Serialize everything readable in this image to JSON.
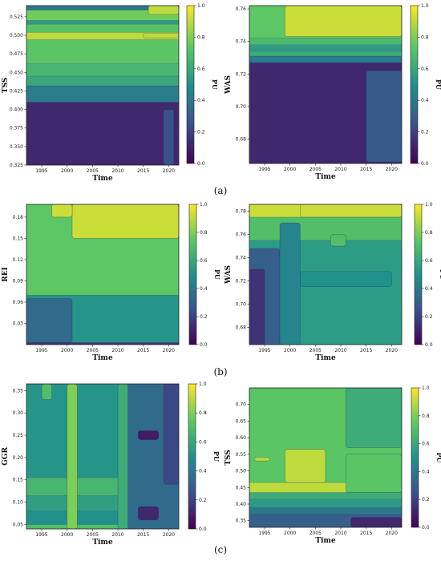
{
  "panel_labels": [
    "(a)",
    "(b)",
    "(c)"
  ],
  "colorbar": {
    "label": "PU",
    "ticks": [
      "0.0",
      "0.2",
      "0.4",
      "0.6",
      "0.8",
      "1.0"
    ],
    "stops": [
      "#440154",
      "#3b528b",
      "#21918c",
      "#5ec962",
      "#fde725"
    ]
  },
  "chart_data": [
    {
      "type": "heatmap",
      "xlabel": "Time",
      "ylabel": "TSS",
      "xticks": [
        "1995",
        "2000",
        "2005",
        "2010",
        "2015",
        "2020"
      ],
      "yticks": [
        "0.325",
        "0.350",
        "0.375",
        "0.400",
        "0.425",
        "0.450",
        "0.475",
        "0.500",
        "0.525"
      ],
      "xlim": [
        1992,
        2022
      ],
      "ylim": [
        0.325,
        0.54
      ],
      "vlim": [
        0,
        1
      ],
      "bands": [
        {
          "y0": 0.325,
          "y1": 0.41,
          "value": 0.12
        },
        {
          "y0": 0.41,
          "y1": 0.432,
          "value": 0.42
        },
        {
          "y0": 0.432,
          "y1": 0.445,
          "value": 0.6
        },
        {
          "y0": 0.445,
          "y1": 0.462,
          "value": 0.66
        },
        {
          "y0": 0.462,
          "y1": 0.494,
          "value": 0.73
        },
        {
          "y0": 0.494,
          "y1": 0.504,
          "value": 0.9
        },
        {
          "y0": 0.504,
          "y1": 0.515,
          "value": 0.72
        },
        {
          "y0": 0.515,
          "y1": 0.52,
          "value": 0.55
        },
        {
          "y0": 0.52,
          "y1": 0.534,
          "value": 0.78
        },
        {
          "y0": 0.534,
          "y1": 0.54,
          "value": 0.4
        }
      ],
      "patches": [
        {
          "x0": 2016,
          "x1": 2022,
          "y0": 0.528,
          "y1": 0.54,
          "value": 0.9
        },
        {
          "x0": 2015,
          "x1": 2022,
          "y0": 0.496,
          "y1": 0.503,
          "value": 0.9
        },
        {
          "x0": 2019,
          "x1": 2021,
          "y0": 0.325,
          "y1": 0.4,
          "value": 0.25
        }
      ]
    },
    {
      "type": "heatmap",
      "xlabel": "Time",
      "ylabel": "WAS",
      "xticks": [
        "1995",
        "2000",
        "2005",
        "2010",
        "2015",
        "2020"
      ],
      "yticks": [
        "0.68",
        "0.70",
        "0.72",
        "0.74",
        "0.76"
      ],
      "xlim": [
        1992,
        2022
      ],
      "ylim": [
        0.665,
        0.762
      ],
      "vlim": [
        0,
        1
      ],
      "bands": [
        {
          "y0": 0.665,
          "y1": 0.727,
          "value": 0.12
        },
        {
          "y0": 0.727,
          "y1": 0.731,
          "value": 0.42
        },
        {
          "y0": 0.731,
          "y1": 0.734,
          "value": 0.62
        },
        {
          "y0": 0.734,
          "y1": 0.738,
          "value": 0.55
        },
        {
          "y0": 0.738,
          "y1": 0.742,
          "value": 0.68
        },
        {
          "y0": 0.742,
          "y1": 0.762,
          "value": 0.74
        }
      ],
      "patches": [
        {
          "x0": 1999,
          "x1": 2022,
          "y0": 0.743,
          "y1": 0.762,
          "value": 0.92
        },
        {
          "x0": 2015,
          "x1": 2022,
          "y0": 0.666,
          "y1": 0.722,
          "value": 0.28
        }
      ]
    },
    {
      "type": "heatmap",
      "xlabel": "Time",
      "ylabel": "REI",
      "xticks": [
        "1995",
        "2000",
        "2005",
        "2010",
        "2015",
        "2020"
      ],
      "yticks": [
        "0.03",
        "0.06",
        "0.09",
        "0.12",
        "0.15",
        "0.18"
      ],
      "xlim": [
        1992,
        2022
      ],
      "ylim": [
        0.0,
        0.198
      ],
      "vlim": [
        0,
        1
      ],
      "bands": [
        {
          "y0": 0.0,
          "y1": 0.003,
          "value": 0.15
        },
        {
          "y0": 0.003,
          "y1": 0.07,
          "value": 0.52
        },
        {
          "y0": 0.07,
          "y1": 0.198,
          "value": 0.74
        }
      ],
      "patches": [
        {
          "x0": 1992,
          "x1": 2001,
          "y0": 0.003,
          "y1": 0.065,
          "value": 0.35
        },
        {
          "x0": 2001,
          "x1": 2022,
          "y0": 0.15,
          "y1": 0.198,
          "value": 0.92
        },
        {
          "x0": 1997,
          "x1": 2001,
          "y0": 0.18,
          "y1": 0.198,
          "value": 0.92
        }
      ]
    },
    {
      "type": "heatmap",
      "xlabel": "Time",
      "ylabel": "WAS",
      "xticks": [
        "1995",
        "2000",
        "2005",
        "2010",
        "2015",
        "2020"
      ],
      "yticks": [
        "0.68",
        "0.70",
        "0.72",
        "0.74",
        "0.76",
        "0.78"
      ],
      "xlim": [
        1992,
        2022
      ],
      "ylim": [
        0.665,
        0.786
      ],
      "vlim": [
        0,
        1
      ],
      "bands": [
        {
          "y0": 0.665,
          "y1": 0.755,
          "value": 0.55
        },
        {
          "y0": 0.755,
          "y1": 0.775,
          "value": 0.7
        },
        {
          "y0": 0.775,
          "y1": 0.786,
          "value": 0.92
        }
      ],
      "patches": [
        {
          "x0": 1992,
          "x1": 1998,
          "y0": 0.665,
          "y1": 0.748,
          "value": 0.3
        },
        {
          "x0": 1992,
          "x1": 1995,
          "y0": 0.665,
          "y1": 0.73,
          "value": 0.15
        },
        {
          "x0": 1998,
          "x1": 2002,
          "y0": 0.665,
          "y1": 0.77,
          "value": 0.45
        },
        {
          "x0": 2002,
          "x1": 2022,
          "y0": 0.775,
          "y1": 0.786,
          "value": 0.92
        },
        {
          "x0": 2008,
          "x1": 2011,
          "y0": 0.75,
          "y1": 0.76,
          "value": 0.7
        },
        {
          "x0": 2002,
          "x1": 2020,
          "y0": 0.715,
          "y1": 0.728,
          "value": 0.5
        }
      ]
    },
    {
      "type": "heatmap",
      "xlabel": "Time",
      "ylabel": "GGR",
      "xticks": [
        "1995",
        "2000",
        "2005",
        "2010",
        "2015",
        "2020"
      ],
      "yticks": [
        "0.05",
        "0.10",
        "0.15",
        "0.20",
        "0.25",
        "0.30",
        "0.35"
      ],
      "xlim": [
        1992,
        2022
      ],
      "ylim": [
        0.04,
        0.365
      ],
      "vlim": [
        0,
        1
      ],
      "bands": [
        {
          "y0": 0.04,
          "y1": 0.05,
          "value": 0.7
        },
        {
          "y0": 0.05,
          "y1": 0.08,
          "value": 0.5
        },
        {
          "y0": 0.08,
          "y1": 0.115,
          "value": 0.56
        },
        {
          "y0": 0.115,
          "y1": 0.155,
          "value": 0.66
        },
        {
          "y0": 0.155,
          "y1": 0.365,
          "value": 0.52
        }
      ],
      "patches": [
        {
          "x0": 2000,
          "x1": 2002,
          "y0": 0.04,
          "y1": 0.365,
          "value": 0.8
        },
        {
          "x0": 2012,
          "x1": 2022,
          "y0": 0.04,
          "y1": 0.365,
          "value": 0.35
        },
        {
          "x0": 2019,
          "x1": 2022,
          "y0": 0.14,
          "y1": 0.365,
          "value": 0.22
        },
        {
          "x0": 2014,
          "x1": 2018,
          "y0": 0.24,
          "y1": 0.26,
          "value": 0.08
        },
        {
          "x0": 2014,
          "x1": 2018,
          "y0": 0.06,
          "y1": 0.09,
          "value": 0.12
        },
        {
          "x0": 2010,
          "x1": 2012,
          "y0": 0.04,
          "y1": 0.365,
          "value": 0.62
        },
        {
          "x0": 1995,
          "x1": 1997,
          "y0": 0.33,
          "y1": 0.365,
          "value": 0.7
        }
      ]
    },
    {
      "type": "heatmap",
      "xlabel": "Time",
      "ylabel": "TSS",
      "xticks": [
        "1995",
        "2000",
        "2005",
        "2010",
        "2015",
        "2020"
      ],
      "yticks": [
        "0.35",
        "0.40",
        "0.45",
        "0.50",
        "0.55",
        "0.60",
        "0.65",
        "0.70"
      ],
      "xlim": [
        1992,
        2022
      ],
      "ylim": [
        0.33,
        0.75
      ],
      "vlim": [
        0,
        1
      ],
      "bands": [
        {
          "y0": 0.33,
          "y1": 0.37,
          "value": 0.3
        },
        {
          "y0": 0.37,
          "y1": 0.39,
          "value": 0.4
        },
        {
          "y0": 0.39,
          "y1": 0.415,
          "value": 0.55
        },
        {
          "y0": 0.415,
          "y1": 0.435,
          "value": 0.62
        },
        {
          "y0": 0.435,
          "y1": 0.465,
          "value": 0.9
        },
        {
          "y0": 0.465,
          "y1": 0.75,
          "value": 0.73
        }
      ],
      "patches": [
        {
          "x0": 2011,
          "x1": 2022,
          "y0": 0.57,
          "y1": 0.75,
          "value": 0.62
        },
        {
          "x0": 2011,
          "x1": 2022,
          "y0": 0.435,
          "y1": 0.55,
          "value": 0.73
        },
        {
          "x0": 1999,
          "x1": 2007,
          "y0": 0.465,
          "y1": 0.565,
          "value": 0.9
        },
        {
          "x0": 1993,
          "x1": 1996,
          "y0": 0.53,
          "y1": 0.54,
          "value": 0.9
        },
        {
          "x0": 2012,
          "x1": 2022,
          "y0": 0.33,
          "y1": 0.36,
          "value": 0.12
        }
      ]
    }
  ]
}
